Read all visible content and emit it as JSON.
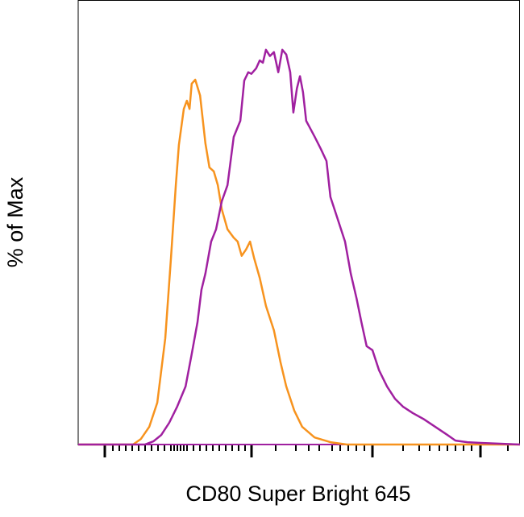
{
  "chart_data": {
    "type": "line",
    "title": "",
    "xlabel": "CD80 Super Bright 645",
    "ylabel": "% of Max",
    "x_scale": "logicle",
    "ylim": [
      0,
      112.6
    ],
    "xlim": [
      0,
      100
    ],
    "grid": false,
    "legend": "none",
    "tick_labels_shown": false,
    "series": [
      {
        "color": "#f7931e",
        "points": [
          [
            0,
            0
          ],
          [
            12.4,
            0
          ],
          [
            14.2,
            1.4
          ],
          [
            16.1,
            4.5
          ],
          [
            17.9,
            10.6
          ],
          [
            19.7,
            26.9
          ],
          [
            21.0,
            47.3
          ],
          [
            22.1,
            65.7
          ],
          [
            22.8,
            75.9
          ],
          [
            23.9,
            85.0
          ],
          [
            24.6,
            87.1
          ],
          [
            25.2,
            85.0
          ],
          [
            25.7,
            91.4
          ],
          [
            26.5,
            92.4
          ],
          [
            27.6,
            88.4
          ],
          [
            28.8,
            76.3
          ],
          [
            29.7,
            70.2
          ],
          [
            30.7,
            69.2
          ],
          [
            31.6,
            65.7
          ],
          [
            32.5,
            59.6
          ],
          [
            33.8,
            54.5
          ],
          [
            35.2,
            52.4
          ],
          [
            36.1,
            51.4
          ],
          [
            37.0,
            47.8
          ],
          [
            38.0,
            49.4
          ],
          [
            38.9,
            51.4
          ],
          [
            39.8,
            47.3
          ],
          [
            41.1,
            42.2
          ],
          [
            42.5,
            35.1
          ],
          [
            44.3,
            28.9
          ],
          [
            45.8,
            20.8
          ],
          [
            47.1,
            14.7
          ],
          [
            48.9,
            8.6
          ],
          [
            50.7,
            4.5
          ],
          [
            53.5,
            1.8
          ],
          [
            57.1,
            0.6
          ],
          [
            60.8,
            0
          ],
          [
            100,
            0
          ]
        ]
      },
      {
        "color": "#a020a0",
        "points": [
          [
            0,
            0
          ],
          [
            15.1,
            0
          ],
          [
            17.0,
            0.8
          ],
          [
            18.8,
            2.4
          ],
          [
            20.6,
            5.5
          ],
          [
            22.4,
            9.6
          ],
          [
            24.3,
            14.7
          ],
          [
            25.7,
            22.9
          ],
          [
            27.0,
            31.0
          ],
          [
            27.9,
            39.2
          ],
          [
            28.8,
            43.3
          ],
          [
            30.1,
            51.4
          ],
          [
            31.2,
            54.5
          ],
          [
            32.5,
            61.6
          ],
          [
            33.8,
            65.7
          ],
          [
            35.2,
            77.9
          ],
          [
            36.7,
            82.0
          ],
          [
            37.6,
            92.2
          ],
          [
            38.5,
            94.3
          ],
          [
            39.2,
            93.9
          ],
          [
            40.3,
            95.3
          ],
          [
            41.1,
            97.3
          ],
          [
            41.8,
            96.7
          ],
          [
            42.5,
            100
          ],
          [
            43.4,
            98.4
          ],
          [
            44.3,
            99.4
          ],
          [
            45.3,
            94.3
          ],
          [
            46.2,
            100
          ],
          [
            47.1,
            98.8
          ],
          [
            48.0,
            94.3
          ],
          [
            48.7,
            84.1
          ],
          [
            49.5,
            90.2
          ],
          [
            50.2,
            93.3
          ],
          [
            50.9,
            89.2
          ],
          [
            51.6,
            82.0
          ],
          [
            53.5,
            78.0
          ],
          [
            54.9,
            74.9
          ],
          [
            56.2,
            71.8
          ],
          [
            57.1,
            62.7
          ],
          [
            58.6,
            57.6
          ],
          [
            60.4,
            51.4
          ],
          [
            61.7,
            43.3
          ],
          [
            63.0,
            37.1
          ],
          [
            64.1,
            31.0
          ],
          [
            65.3,
            24.9
          ],
          [
            66.6,
            23.9
          ],
          [
            68.1,
            18.8
          ],
          [
            69.9,
            14.7
          ],
          [
            71.7,
            11.6
          ],
          [
            73.5,
            9.6
          ],
          [
            75.7,
            8.0
          ],
          [
            78.1,
            6.5
          ],
          [
            80.8,
            4.5
          ],
          [
            83.6,
            2.4
          ],
          [
            85.4,
            1.0
          ],
          [
            88.1,
            0.6
          ],
          [
            91.1,
            0.4
          ],
          [
            100,
            0
          ]
        ]
      }
    ]
  }
}
